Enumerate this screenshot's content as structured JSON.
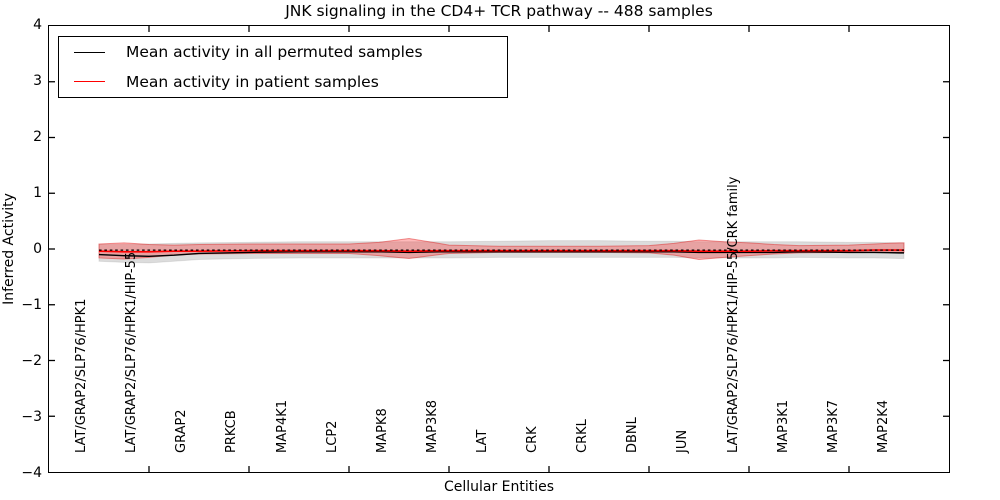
{
  "chart_data": {
    "type": "line",
    "title": "JNK signaling in the CD4+ TCR pathway -- 488 samples",
    "xlabel": "Cellular Entities",
    "ylabel": "Inferred Activity",
    "xlim": [
      -1,
      17
    ],
    "ylim": [
      -4,
      4
    ],
    "grid": false,
    "tick_direction": "in",
    "ytick_values": [
      4,
      3,
      2,
      1,
      0,
      -1,
      -2,
      -3,
      -4
    ],
    "ytick_labels": [
      "4",
      "3",
      "2",
      "1",
      "0",
      "−1",
      "−2",
      "−3",
      "−4"
    ],
    "xtick_values": [
      -1,
      1,
      3,
      5,
      7,
      9,
      11,
      13,
      15,
      17
    ],
    "categories": [
      "LAT/GRAP2/SLP76/HPK1",
      "LAT/GRAP2/SLP76/HPK1/HIP-55",
      "GRAP2",
      "PRKCB",
      "MAP4K1",
      "LCP2",
      "MAPK8",
      "MAP3K8",
      "LAT",
      "CRK",
      "CRKL",
      "DBNL",
      "JUN",
      "LAT/GRAP2/SLP76/HPK1/HIP-55/CRK family",
      "MAP3K1",
      "MAP3K7",
      "MAP2K4"
    ],
    "category_x": [
      0,
      1,
      2,
      3,
      4,
      5,
      6,
      7,
      8,
      9,
      10,
      11,
      12,
      13,
      14,
      15,
      16
    ],
    "legend": {
      "position": "upper left",
      "entries": [
        {
          "label": "Mean activity in all permuted samples",
          "color": "#000000"
        },
        {
          "label": "Mean activity in patient samples",
          "color": "#ff0000"
        }
      ]
    },
    "series": [
      {
        "name": "permuted_std_band",
        "kind": "band",
        "fill": "rgba(130,130,130,0.28)",
        "stroke": "rgba(130,130,130,0.18)",
        "x": [
          0,
          0.5,
          1,
          1.5,
          2,
          3,
          4,
          5,
          5.6,
          6.2,
          6.8,
          7,
          8,
          9,
          10,
          11,
          11.5,
          12,
          12.5,
          13,
          13.5,
          14,
          15,
          15.5,
          16,
          16.1
        ],
        "upper": [
          0.08,
          0.08,
          0.09,
          0.1,
          0.11,
          0.12,
          0.13,
          0.13,
          0.13,
          0.13,
          0.13,
          0.13,
          0.14,
          0.15,
          0.15,
          0.14,
          0.14,
          0.13,
          0.13,
          0.13,
          0.13,
          0.13,
          0.12,
          0.12,
          0.11,
          0.11
        ],
        "lower": [
          -0.22,
          -0.24,
          -0.25,
          -0.22,
          -0.19,
          -0.17,
          -0.16,
          -0.16,
          -0.16,
          -0.16,
          -0.16,
          -0.16,
          -0.15,
          -0.15,
          -0.15,
          -0.15,
          -0.15,
          -0.16,
          -0.16,
          -0.16,
          -0.16,
          -0.15,
          -0.16,
          -0.16,
          -0.17,
          -0.17
        ]
      },
      {
        "name": "patient_std_band",
        "kind": "band",
        "fill": "rgba(255,45,45,0.33)",
        "stroke": "rgba(220,25,25,0.45)",
        "x": [
          0,
          0.5,
          1,
          1.5,
          2,
          3,
          4,
          5,
          5.6,
          6.2,
          6.8,
          7,
          8,
          9,
          10,
          11,
          11.5,
          12,
          12.5,
          13,
          13.5,
          14,
          15,
          15.5,
          16,
          16.1
        ],
        "upper": [
          0.09,
          0.11,
          0.08,
          0.07,
          0.08,
          0.09,
          0.09,
          0.09,
          0.12,
          0.19,
          0.1,
          0.07,
          0.05,
          0.05,
          0.05,
          0.06,
          0.1,
          0.16,
          0.13,
          0.11,
          0.08,
          0.06,
          0.07,
          0.09,
          0.11,
          0.11
        ],
        "lower": [
          -0.16,
          -0.18,
          -0.15,
          -0.11,
          -0.09,
          -0.08,
          -0.08,
          -0.08,
          -0.12,
          -0.17,
          -0.1,
          -0.08,
          -0.06,
          -0.06,
          -0.06,
          -0.07,
          -0.11,
          -0.19,
          -0.15,
          -0.12,
          -0.09,
          -0.07,
          -0.06,
          -0.06,
          -0.06,
          -0.06
        ]
      },
      {
        "name": "permuted_mean",
        "kind": "line",
        "color": "#000000",
        "width": 1.4,
        "x": [
          0,
          0.5,
          1,
          1.5,
          2,
          3,
          4,
          5,
          5.6,
          6.2,
          6.8,
          7,
          8,
          9,
          10,
          11,
          11.5,
          12,
          12.5,
          13,
          13.5,
          14,
          15,
          15.5,
          16,
          16.1
        ],
        "y": [
          -0.1,
          -0.12,
          -0.13,
          -0.11,
          -0.08,
          -0.06,
          -0.05,
          -0.05,
          -0.05,
          -0.06,
          -0.05,
          -0.05,
          -0.05,
          -0.05,
          -0.05,
          -0.05,
          -0.05,
          -0.06,
          -0.06,
          -0.06,
          -0.06,
          -0.05,
          -0.06,
          -0.06,
          -0.07,
          -0.07
        ]
      },
      {
        "name": "patient_mean",
        "kind": "line",
        "color": "#ff0000",
        "width": 1.6,
        "x": [
          0,
          0.5,
          1,
          1.5,
          2,
          3,
          4,
          5,
          5.6,
          6.2,
          6.8,
          7,
          8,
          9,
          10,
          11,
          11.5,
          12,
          12.5,
          13,
          13.5,
          14,
          15,
          15.5,
          16,
          16.1
        ],
        "y": [
          -0.04,
          -0.05,
          -0.05,
          -0.04,
          -0.04,
          -0.03,
          -0.03,
          -0.03,
          -0.03,
          -0.04,
          -0.03,
          -0.03,
          -0.03,
          -0.03,
          -0.03,
          -0.03,
          -0.03,
          -0.04,
          -0.04,
          -0.04,
          -0.03,
          -0.03,
          -0.03,
          -0.02,
          -0.02,
          -0.02
        ]
      },
      {
        "name": "permuted_mean_dashed_overlay",
        "kind": "line",
        "color": "#000000",
        "width": 1.3,
        "dash": "2.6 2.8",
        "x": [
          0,
          16.1
        ],
        "y": [
          -0.02,
          -0.02
        ]
      }
    ]
  }
}
